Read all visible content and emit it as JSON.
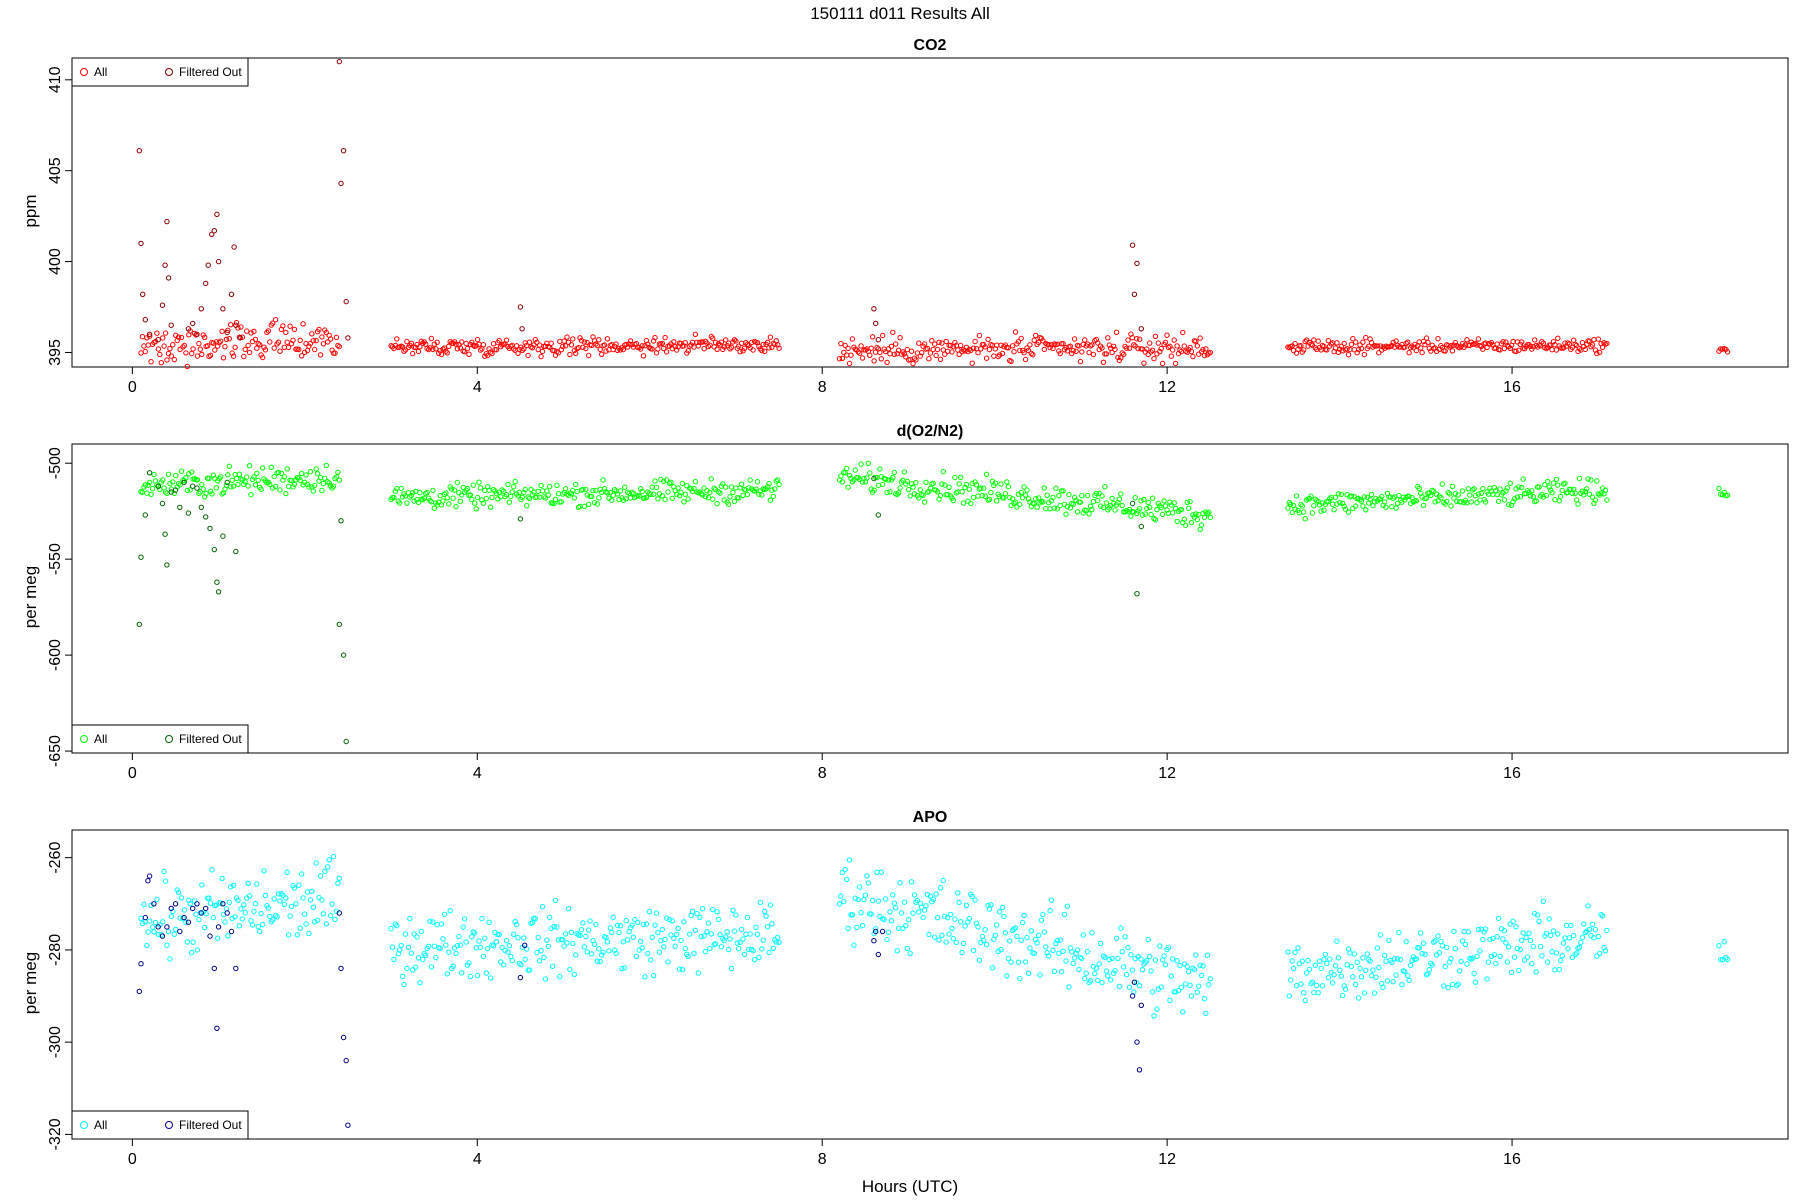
{
  "page_title": "150111   d011   Results All",
  "chart_data": [
    {
      "type": "scatter",
      "title": "CO2",
      "xlabel": "",
      "ylabel": "ppm",
      "xlim": [
        -0.7,
        19.2
      ],
      "ylim": [
        394.2,
        411.2
      ],
      "xticks": [
        0,
        4,
        8,
        12,
        16
      ],
      "yticks": [
        395,
        400,
        405,
        410
      ],
      "legend_position": "top-left",
      "series": [
        {
          "name": "All",
          "color": "#ff0000",
          "segments": [
            [
              0.1,
              2.4,
              395.5,
              0.2,
              0.8
            ],
            [
              3.0,
              7.5,
              395.3,
              0.15,
              0.4
            ],
            [
              8.2,
              12.5,
              395.1,
              0.15,
              0.6
            ],
            [
              13.4,
              17.1,
              395.3,
              0.1,
              0.3
            ],
            [
              18.4,
              18.5,
              395.1,
              0.05,
              0.1
            ]
          ]
        },
        {
          "name": "Filtered Out",
          "color": "#8b0000",
          "points": [
            [
              0.08,
              406.1
            ],
            [
              0.1,
              401.0
            ],
            [
              0.12,
              398.2
            ],
            [
              0.15,
              396.8
            ],
            [
              0.2,
              396.0
            ],
            [
              0.3,
              395.7
            ],
            [
              0.35,
              397.6
            ],
            [
              0.38,
              399.8
            ],
            [
              0.4,
              402.2
            ],
            [
              0.42,
              399.1
            ],
            [
              0.45,
              396.5
            ],
            [
              0.65,
              396.3
            ],
            [
              0.7,
              396.6
            ],
            [
              0.75,
              396.0
            ],
            [
              0.8,
              397.4
            ],
            [
              0.85,
              398.8
            ],
            [
              0.88,
              399.8
            ],
            [
              0.92,
              401.5
            ],
            [
              0.95,
              401.7
            ],
            [
              0.98,
              402.6
            ],
            [
              1.0,
              400.0
            ],
            [
              1.05,
              397.4
            ],
            [
              1.1,
              396.1
            ],
            [
              1.15,
              398.2
            ],
            [
              1.18,
              400.8
            ],
            [
              1.2,
              396.5
            ],
            [
              1.25,
              395.8
            ],
            [
              2.4,
              411.0
            ],
            [
              2.42,
              404.3
            ],
            [
              2.45,
              406.1
            ],
            [
              2.48,
              397.8
            ],
            [
              2.5,
              395.8
            ],
            [
              4.5,
              397.5
            ],
            [
              4.52,
              396.3
            ],
            [
              8.6,
              397.4
            ],
            [
              8.62,
              396.6
            ],
            [
              8.65,
              395.7
            ],
            [
              11.6,
              400.9
            ],
            [
              11.62,
              398.2
            ],
            [
              11.65,
              399.9
            ],
            [
              11.7,
              396.3
            ]
          ]
        }
      ]
    },
    {
      "type": "scatter",
      "title": "d(O2/N2)",
      "xlabel": "",
      "ylabel": "per meg",
      "xlim": [
        -0.7,
        19.2
      ],
      "ylim": [
        -651,
        -490
      ],
      "xticks": [
        0,
        4,
        8,
        12,
        16
      ],
      "yticks": [
        -650,
        -600,
        -550,
        -500
      ],
      "legend_position": "bottom-left",
      "series": [
        {
          "name": "All",
          "color": "#00ff00",
          "segments": [
            [
              0.1,
              2.4,
              -512,
              5,
              6
            ],
            [
              3.0,
              7.5,
              -518,
              4,
              5
            ],
            [
              8.2,
              12.5,
              -507,
              -20,
              6
            ],
            [
              13.4,
              17.1,
              -522,
              8,
              5
            ],
            [
              18.4,
              18.5,
              -515,
              0,
              2
            ]
          ]
        },
        {
          "name": "Filtered Out",
          "color": "#006400",
          "points": [
            [
              0.08,
              -584
            ],
            [
              0.1,
              -549
            ],
            [
              0.15,
              -527
            ],
            [
              0.2,
              -505
            ],
            [
              0.3,
              -512
            ],
            [
              0.35,
              -521
            ],
            [
              0.38,
              -537
            ],
            [
              0.4,
              -553
            ],
            [
              0.45,
              -515
            ],
            [
              0.5,
              -514
            ],
            [
              0.55,
              -523
            ],
            [
              0.6,
              -510
            ],
            [
              0.65,
              -526
            ],
            [
              0.7,
              -512
            ],
            [
              0.75,
              -513
            ],
            [
              0.8,
              -523
            ],
            [
              0.85,
              -528
            ],
            [
              0.9,
              -534
            ],
            [
              0.95,
              -545
            ],
            [
              0.98,
              -562
            ],
            [
              1.0,
              -567
            ],
            [
              1.05,
              -538
            ],
            [
              1.1,
              -510
            ],
            [
              1.2,
              -546
            ],
            [
              2.4,
              -584
            ],
            [
              2.42,
              -530
            ],
            [
              2.45,
              -600
            ],
            [
              2.48,
              -645
            ],
            [
              4.5,
              -529
            ],
            [
              8.6,
              -508
            ],
            [
              8.65,
              -527
            ],
            [
              11.6,
              -521
            ],
            [
              11.65,
              -568
            ],
            [
              11.7,
              -533
            ]
          ]
        }
      ]
    },
    {
      "type": "scatter",
      "title": "APO",
      "xlabel": "Hours (UTC)",
      "ylabel": "per meg",
      "xlim": [
        -0.7,
        19.2
      ],
      "ylim": [
        -321,
        -254
      ],
      "xticks": [
        0,
        4,
        8,
        12,
        16
      ],
      "yticks": [
        -320,
        -300,
        -280,
        -260
      ],
      "legend_position": "bottom-left",
      "series": [
        {
          "name": "All",
          "color": "#00ffff",
          "segments": [
            [
              0.1,
              2.4,
              -274,
              5,
              7
            ],
            [
              3.0,
              7.5,
              -279,
              2,
              6
            ],
            [
              8.2,
              12.5,
              -268,
              -20,
              7
            ],
            [
              13.4,
              17.1,
              -285,
              8,
              6
            ],
            [
              18.4,
              18.5,
              -281,
              0,
              3
            ]
          ]
        },
        {
          "name": "Filtered Out",
          "color": "#00008b",
          "points": [
            [
              0.08,
              -289
            ],
            [
              0.1,
              -283
            ],
            [
              0.15,
              -273
            ],
            [
              0.18,
              -265
            ],
            [
              0.2,
              -264
            ],
            [
              0.25,
              -270
            ],
            [
              0.3,
              -275
            ],
            [
              0.35,
              -277
            ],
            [
              0.4,
              -275
            ],
            [
              0.45,
              -271
            ],
            [
              0.5,
              -270
            ],
            [
              0.55,
              -276
            ],
            [
              0.6,
              -273
            ],
            [
              0.65,
              -274
            ],
            [
              0.7,
              -271
            ],
            [
              0.75,
              -270
            ],
            [
              0.8,
              -272
            ],
            [
              0.85,
              -271
            ],
            [
              0.9,
              -277
            ],
            [
              0.95,
              -284
            ],
            [
              0.98,
              -297
            ],
            [
              1.0,
              -275
            ],
            [
              1.05,
              -270
            ],
            [
              1.1,
              -272
            ],
            [
              1.15,
              -276
            ],
            [
              1.2,
              -284
            ],
            [
              2.4,
              -272
            ],
            [
              2.42,
              -284
            ],
            [
              2.45,
              -299
            ],
            [
              2.48,
              -304
            ],
            [
              2.5,
              -318
            ],
            [
              4.5,
              -286
            ],
            [
              4.55,
              -279
            ],
            [
              8.6,
              -278
            ],
            [
              8.62,
              -276
            ],
            [
              8.65,
              -281
            ],
            [
              8.7,
              -276
            ],
            [
              11.6,
              -290
            ],
            [
              11.62,
              -287
            ],
            [
              11.65,
              -300
            ],
            [
              11.68,
              -306
            ],
            [
              11.7,
              -292
            ]
          ]
        }
      ]
    }
  ]
}
